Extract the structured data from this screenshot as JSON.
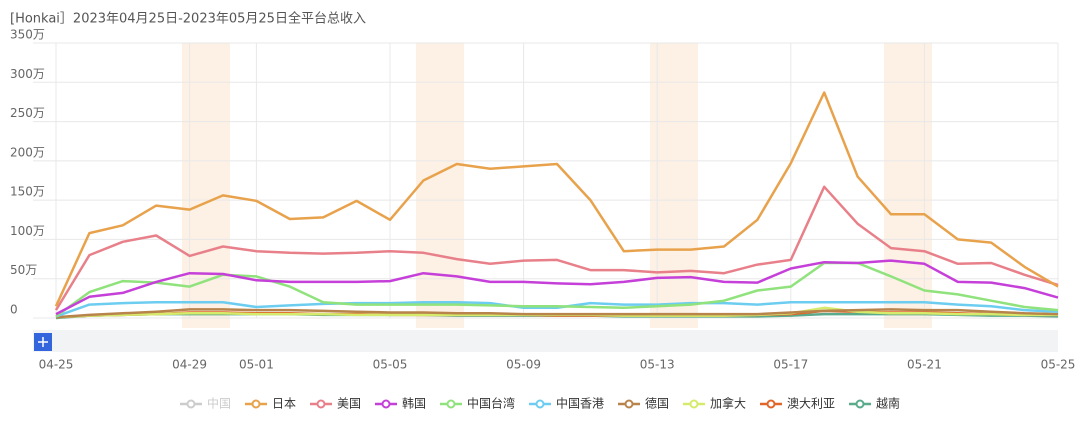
{
  "chart_data": {
    "type": "line",
    "title": "[Honkai］2023年04月25日-2023年05月25日全平台总收入",
    "categories": [
      "04-25",
      null,
      null,
      null,
      "04-29",
      null,
      "05-01",
      null,
      null,
      null,
      "05-05",
      null,
      null,
      null,
      "05-09",
      null,
      null,
      null,
      "05-13",
      null,
      null,
      null,
      "05-17",
      null,
      null,
      null,
      "05-21",
      null,
      null,
      null,
      "05-25"
    ],
    "ylim": [
      0,
      350
    ],
    "yticks": [
      0,
      {
        "value": 50,
        "label": "50万"
      },
      {
        "value": 100,
        "label": "100万"
      },
      {
        "value": 150,
        "label": "150万"
      },
      {
        "value": 200,
        "label": "200万"
      },
      {
        "value": 250,
        "label": "250万"
      },
      {
        "value": 300,
        "label": "300万"
      },
      {
        "value": 350,
        "label": "350万"
      }
    ],
    "grid": true,
    "legend": "bottom",
    "series": [
      {
        "name": "中国",
        "color": "#cccccc",
        "values": [
          null,
          null,
          null,
          null,
          null,
          null,
          null,
          null,
          null,
          null,
          null,
          null,
          null,
          null,
          null,
          null,
          null,
          null,
          null,
          null,
          null,
          null,
          null,
          null,
          null,
          null,
          null,
          null,
          null,
          null,
          null
        ]
      },
      {
        "name": "日本",
        "color": "#e8a24c",
        "values": [
          15,
          108,
          118,
          143,
          138,
          156,
          149,
          126,
          128,
          149,
          125,
          175,
          196,
          190,
          193,
          196,
          150,
          85,
          87,
          87,
          91,
          125,
          197,
          287,
          180,
          132,
          132,
          100,
          96,
          65,
          40
        ]
      },
      {
        "name": "美国",
        "color": "#e8808a",
        "values": [
          10,
          80,
          97,
          105,
          79,
          91,
          85,
          83,
          82,
          83,
          85,
          83,
          75,
          69,
          73,
          74,
          61,
          61,
          58,
          60,
          57,
          68,
          74,
          167,
          120,
          89,
          85,
          69,
          70,
          55,
          42
        ]
      },
      {
        "name": "韩国",
        "color": "#c540d8",
        "values": [
          5,
          27,
          32,
          46,
          57,
          56,
          48,
          46,
          46,
          46,
          47,
          57,
          53,
          46,
          46,
          44,
          43,
          46,
          51,
          52,
          46,
          45,
          63,
          71,
          70,
          73,
          69,
          46,
          45,
          38,
          26
        ]
      },
      {
        "name": "中国台湾",
        "color": "#90e27c",
        "values": [
          2,
          33,
          47,
          45,
          40,
          55,
          53,
          40,
          20,
          17,
          17,
          17,
          17,
          16,
          15,
          15,
          14,
          13,
          15,
          17,
          22,
          35,
          40,
          70,
          70,
          53,
          35,
          30,
          22,
          14,
          10
        ]
      },
      {
        "name": "中国香港",
        "color": "#6ccdf0",
        "values": [
          2,
          17,
          19,
          20,
          20,
          20,
          14,
          16,
          18,
          19,
          19,
          20,
          20,
          19,
          13,
          13,
          19,
          17,
          17,
          19,
          19,
          17,
          20,
          20,
          20,
          20,
          20,
          17,
          15,
          10,
          8
        ]
      },
      {
        "name": "德国",
        "color": "#b8844c",
        "values": [
          1,
          4,
          6,
          8,
          11,
          11,
          10,
          10,
          9,
          8,
          7,
          7,
          6,
          6,
          5,
          5,
          5,
          5,
          5,
          5,
          5,
          5,
          7,
          9,
          10,
          11,
          10,
          10,
          8,
          6,
          5
        ]
      },
      {
        "name": "加拿大",
        "color": "#d6ea6c",
        "values": [
          1,
          3,
          4,
          5,
          6,
          6,
          5,
          5,
          5,
          4,
          4,
          4,
          4,
          4,
          4,
          4,
          4,
          3,
          3,
          3,
          3,
          4,
          6,
          13,
          8,
          6,
          6,
          5,
          5,
          4,
          4
        ]
      },
      {
        "name": "澳大利亚",
        "color": "#e0662c",
        "values": [
          1,
          3,
          4,
          5,
          7,
          7,
          6,
          6,
          5,
          5,
          4,
          4,
          4,
          4,
          4,
          3,
          3,
          3,
          3,
          3,
          3,
          4,
          5,
          9,
          8,
          7,
          7,
          6,
          5,
          4,
          4
        ]
      },
      {
        "name": "越南",
        "color": "#5aab8c",
        "values": [
          0,
          3,
          4,
          5,
          5,
          5,
          5,
          5,
          4,
          4,
          4,
          4,
          3,
          3,
          3,
          3,
          3,
          2,
          2,
          2,
          2,
          2,
          3,
          5,
          5,
          5,
          5,
          4,
          3,
          3,
          2
        ]
      }
    ]
  }
}
